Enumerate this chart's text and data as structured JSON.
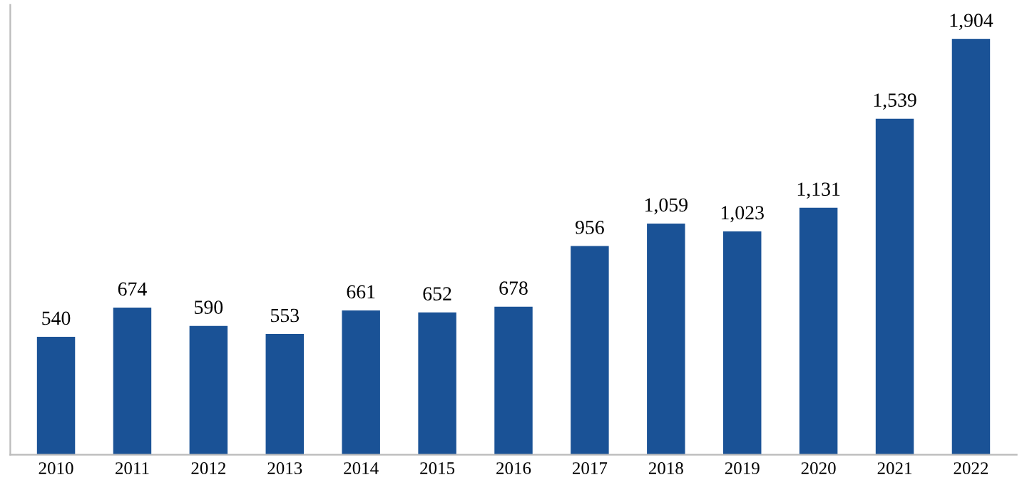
{
  "chart_data": {
    "type": "bar",
    "categories": [
      "2010",
      "2011",
      "2012",
      "2013",
      "2014",
      "2015",
      "2016",
      "2017",
      "2018",
      "2019",
      "2020",
      "2021",
      "2022"
    ],
    "values": [
      540,
      674,
      590,
      553,
      661,
      652,
      678,
      956,
      1059,
      1023,
      1131,
      1539,
      1904
    ],
    "color": "#1a5296",
    "value_labels": [
      "540",
      "674",
      "590",
      "553",
      "661",
      "652",
      "678",
      "956",
      "1,059",
      "1,023",
      "1,131",
      "1,539",
      "1,904"
    ],
    "ylim": [
      0,
      2060
    ],
    "tick_labels": "x",
    "grid": false,
    "legend": false
  }
}
